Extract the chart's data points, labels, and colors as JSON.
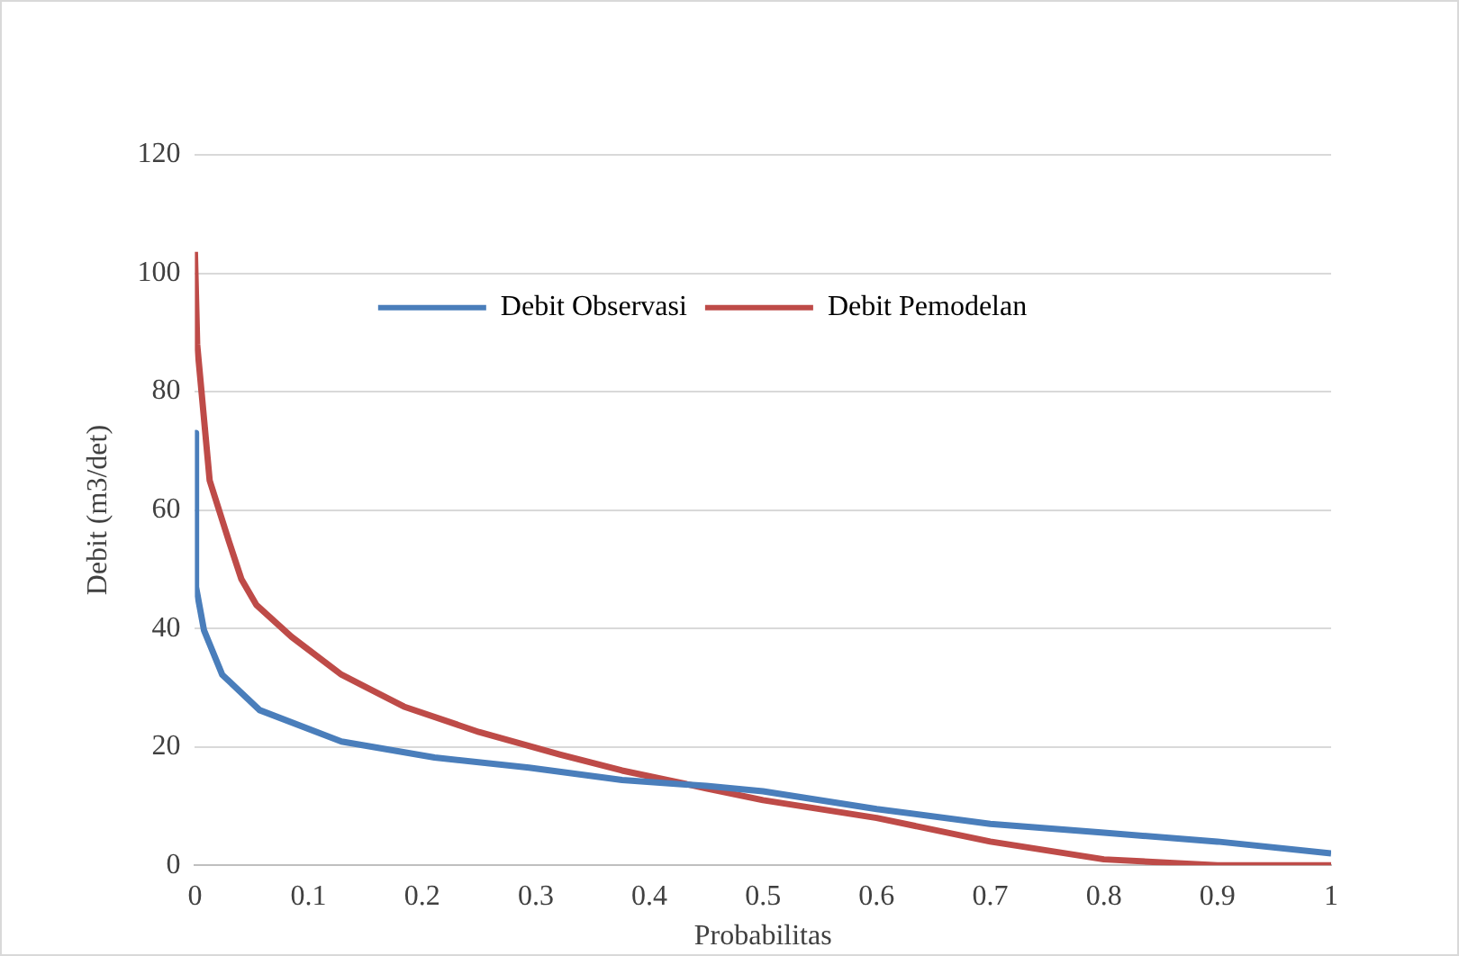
{
  "chart_data": {
    "type": "line",
    "xlabel": "Probabilitas",
    "ylabel": "Debit (m3/det)",
    "xlim": [
      0,
      1
    ],
    "xticks": [
      0,
      0.1,
      0.2,
      0.3,
      0.4,
      0.5,
      0.6,
      0.7,
      0.8,
      0.9,
      1
    ],
    "ylim": [
      0,
      120
    ],
    "yticks": [
      0,
      20,
      40,
      60,
      80,
      100,
      120
    ],
    "grid": "y",
    "legend": "top",
    "marker": "none",
    "series": [
      {
        "name": "Debit Observasi",
        "color": "#4a7ebb",
        "x": [
          0,
          0.001,
          0.008,
          0.024,
          0.057,
          0.129,
          0.211,
          0.294,
          0.376,
          0.45,
          0.5,
          0.6,
          0.7,
          0.8,
          0.9,
          1
        ],
        "values": [
          73,
          47,
          39.7,
          32.2,
          26.2,
          20.9,
          18.2,
          16.5,
          14.4,
          13.4,
          12.5,
          9.5,
          7,
          5.5,
          4,
          2
        ]
      },
      {
        "name": "Debit Pemodelan",
        "color": "#be4b48",
        "x": [
          0,
          0.002,
          0.013,
          0.03,
          0.041,
          0.054,
          0.085,
          0.129,
          0.184,
          0.25,
          0.321,
          0.376,
          0.45,
          0.5,
          0.6,
          0.7,
          0.8,
          0.9,
          1
        ],
        "values": [
          103.6,
          88,
          65,
          54.7,
          48.3,
          44,
          38.6,
          32.2,
          26.8,
          22.5,
          18.7,
          16,
          13,
          11,
          8,
          4,
          1,
          0,
          0
        ]
      }
    ]
  }
}
